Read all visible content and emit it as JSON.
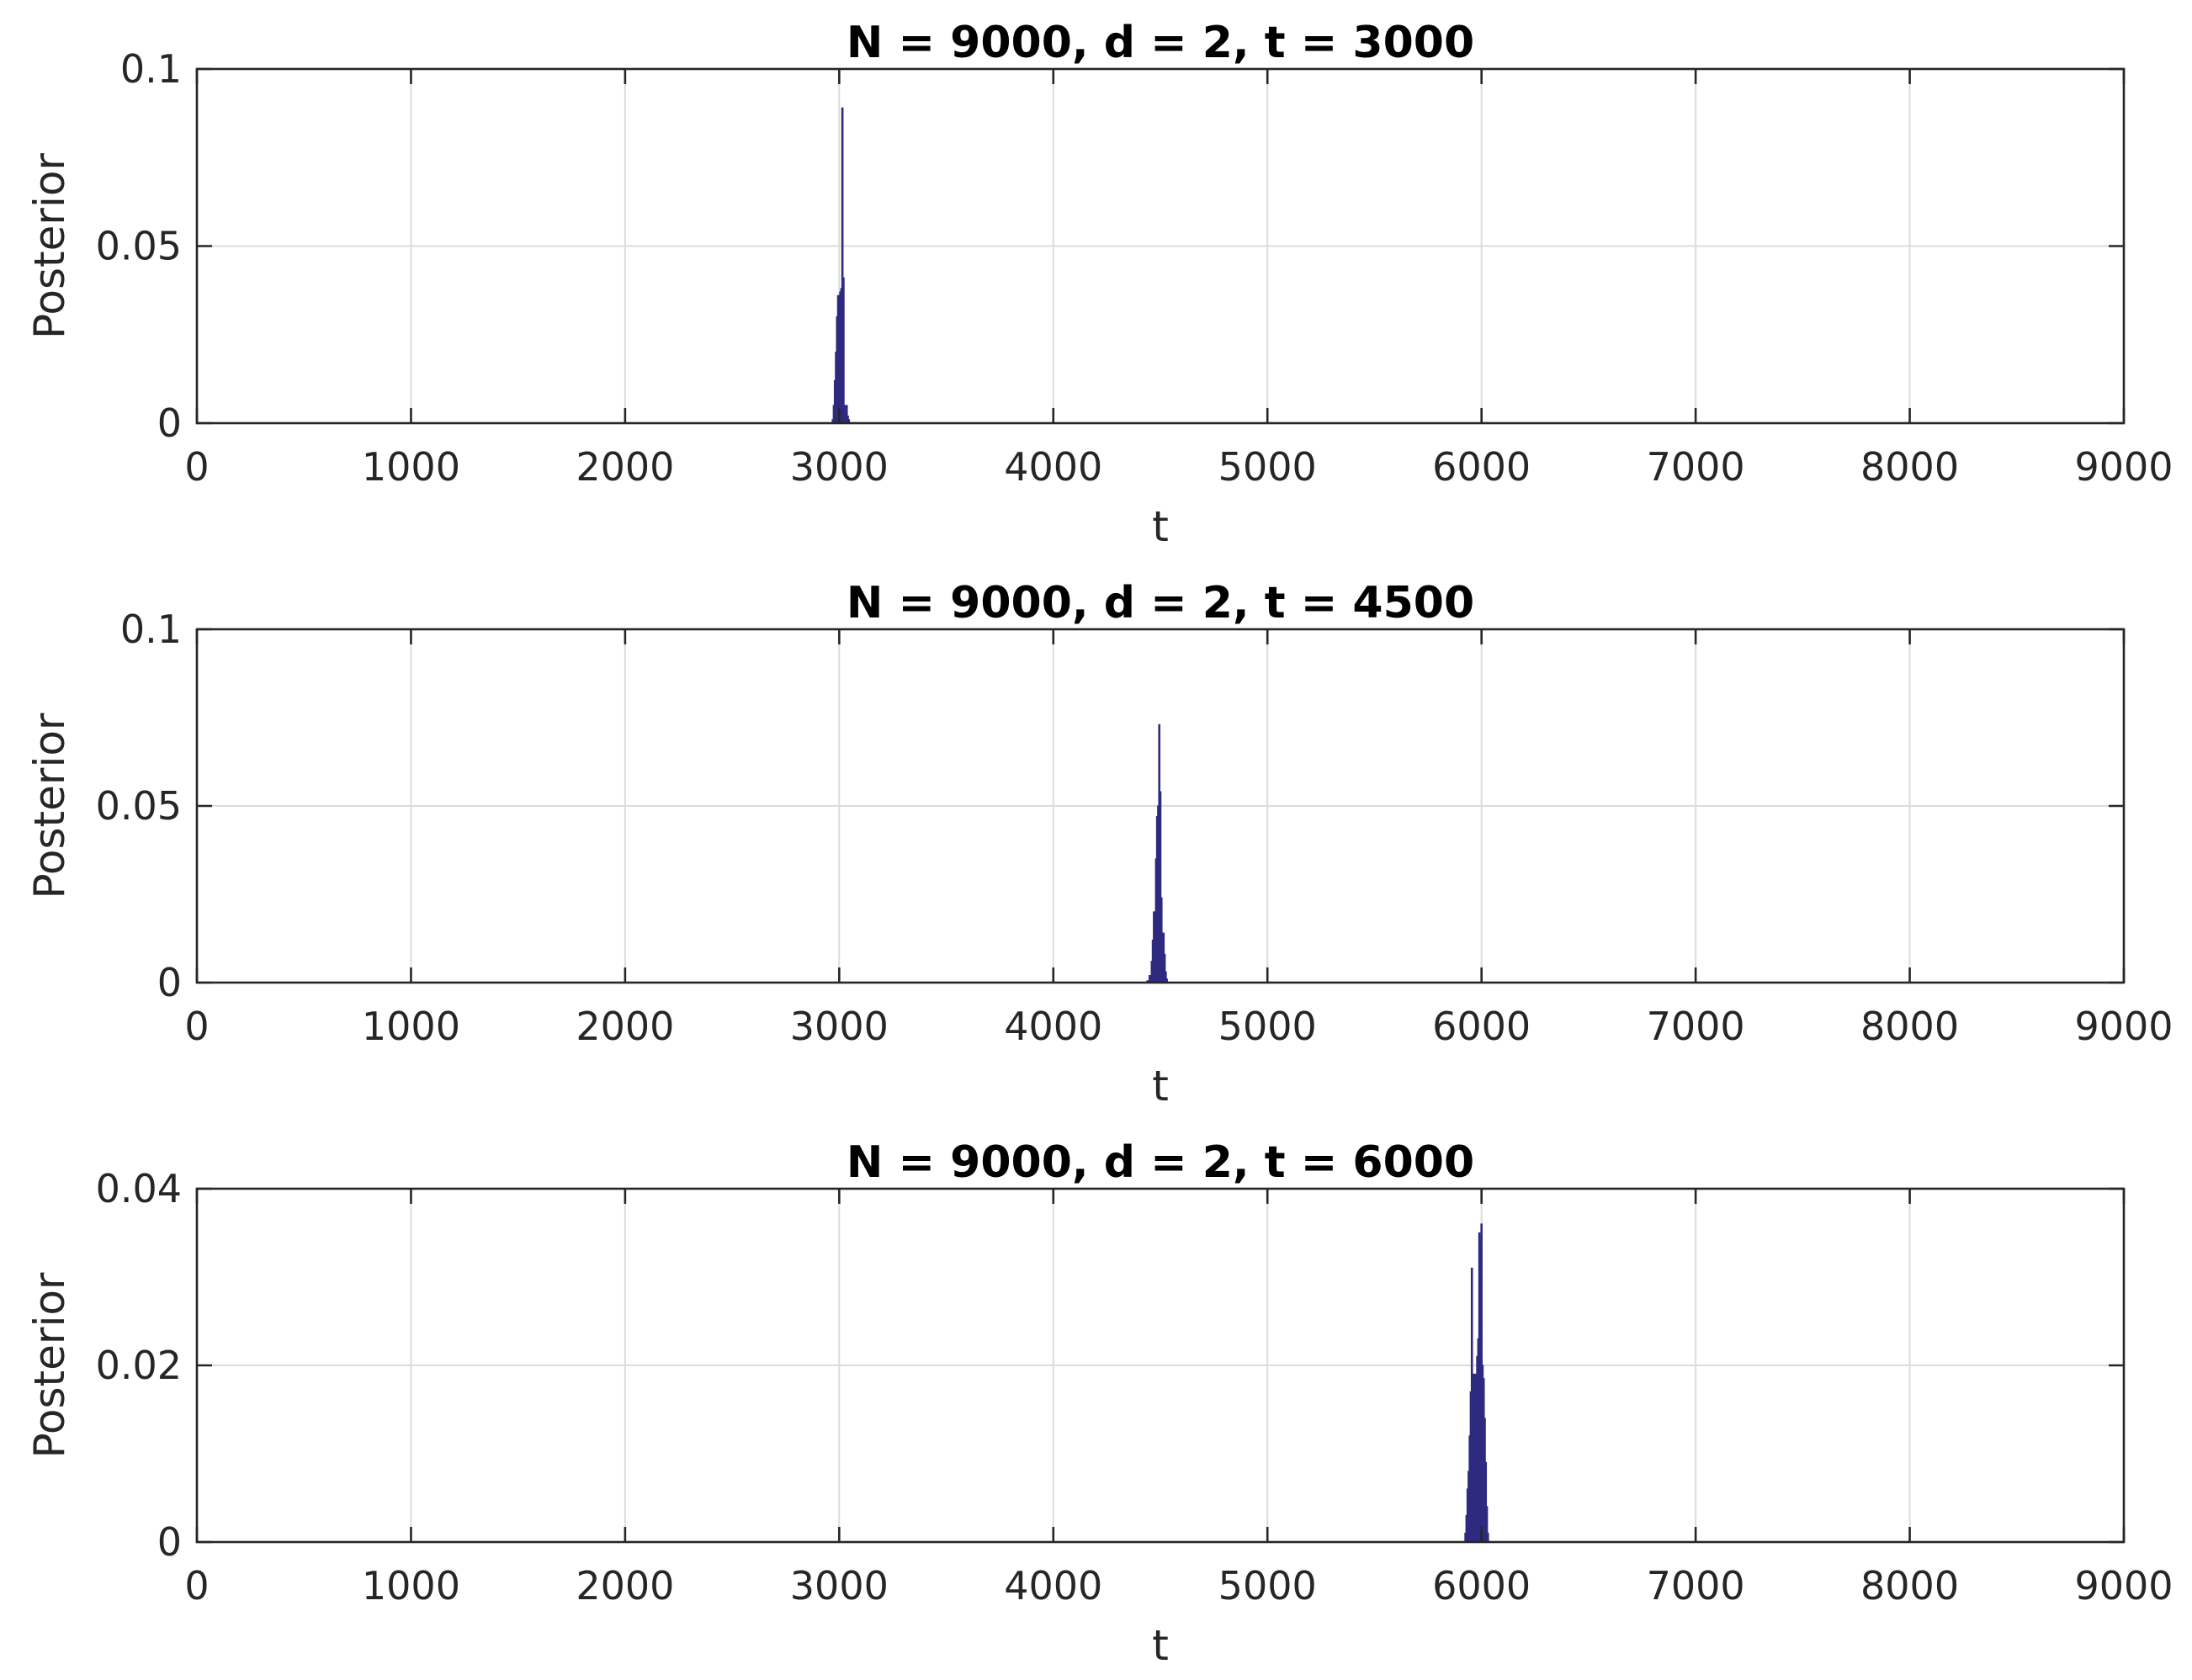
{
  "chart_data": [
    {
      "type": "bar",
      "title": "N = 9000, d = 2, t = 3000",
      "xlabel": "t",
      "ylabel": "Posterior",
      "xlim": [
        0,
        9000
      ],
      "ylim": [
        0,
        0.1
      ],
      "xticks": [
        "0",
        "1000",
        "2000",
        "3000",
        "4000",
        "5000",
        "6000",
        "7000",
        "8000",
        "9000"
      ],
      "yticks": [
        "0",
        "0.05",
        "0.1"
      ],
      "grid": true,
      "color": "#2e2a80",
      "x": [
        2970,
        2975,
        2980,
        2985,
        2990,
        2995,
        3000,
        3005,
        3010,
        3015,
        3020,
        3025,
        3030,
        3035,
        3040,
        3045
      ],
      "values": [
        0.001,
        0.005,
        0.012,
        0.02,
        0.03,
        0.036,
        0.036,
        0.037,
        0.038,
        0.089,
        0.041,
        0.005,
        0.003,
        0.005,
        0.002,
        0.001
      ]
    },
    {
      "type": "bar",
      "title": "N = 9000, d = 2, t = 4500",
      "xlabel": "t",
      "ylabel": "Posterior",
      "xlim": [
        0,
        9000
      ],
      "ylim": [
        0,
        0.1
      ],
      "xticks": [
        "0",
        "1000",
        "2000",
        "3000",
        "4000",
        "5000",
        "6000",
        "7000",
        "8000",
        "9000"
      ],
      "yticks": [
        "0",
        "0.05",
        "0.1"
      ],
      "grid": true,
      "color": "#2e2a80",
      "x": [
        4440,
        4450,
        4460,
        4465,
        4470,
        4475,
        4480,
        4485,
        4490,
        4495,
        4500,
        4505,
        4510,
        4515,
        4520,
        4525,
        4530
      ],
      "values": [
        0.0005,
        0.002,
        0.006,
        0.012,
        0.02,
        0.02,
        0.035,
        0.047,
        0.05,
        0.073,
        0.054,
        0.024,
        0.014,
        0.014,
        0.008,
        0.003,
        0.001
      ]
    },
    {
      "type": "bar",
      "title": "N = 9000, d = 2, t = 6000",
      "xlabel": "t",
      "ylabel": "Posterior",
      "xlim": [
        0,
        9000
      ],
      "ylim": [
        0,
        0.04
      ],
      "xticks": [
        "0",
        "1000",
        "2000",
        "3000",
        "4000",
        "5000",
        "6000",
        "7000",
        "8000",
        "9000"
      ],
      "yticks": [
        "0",
        "0.02",
        "0.04"
      ],
      "grid": true,
      "color": "#2e2a80",
      "x": [
        5925,
        5930,
        5935,
        5940,
        5945,
        5950,
        5955,
        5960,
        5965,
        5970,
        5975,
        5980,
        5985,
        5990,
        5995,
        6000,
        6005,
        6010,
        6015,
        6020,
        6025,
        6030
      ],
      "values": [
        0.001,
        0.003,
        0.006,
        0.008,
        0.012,
        0.017,
        0.031,
        0.019,
        0.019,
        0.018,
        0.019,
        0.021,
        0.023,
        0.035,
        0.034,
        0.036,
        0.02,
        0.0185,
        0.014,
        0.009,
        0.004,
        0.001
      ]
    }
  ]
}
